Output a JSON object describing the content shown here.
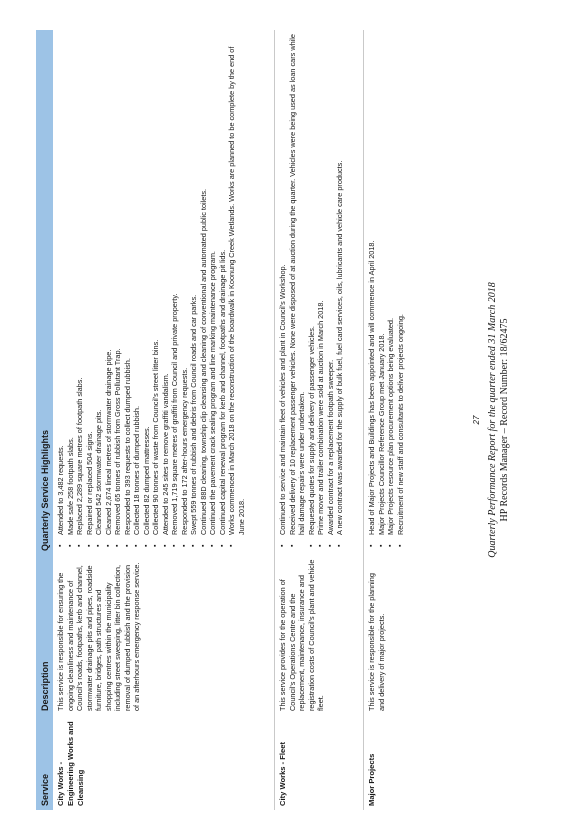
{
  "table": {
    "headers": [
      "Service",
      "Description",
      "Quarterly Service Highlights"
    ],
    "rows": [
      {
        "service": "City Works - Engineering Works and Cleansing",
        "description": "This service is responsible for ensuring the ongoing cleanliness and maintenance of Council's roads, footpaths, kerb and channel, stormwater drainage pits and pipes, roadside furniture, bridges, path structures and shopping centres within the municipality including street sweeping, litter bin collection, removal of dumped rubbish and the provision of an afterhours emergency response service.",
        "highlights": [
          "Attended to 3,482 requests.",
          "Made safe 258 footpath slabs.",
          "Replaced 2,289 square metres of footpath slabs.",
          "Repaired or replaced 504 signs.",
          "Cleaned 542 stormwater drainage pits.",
          "Cleaned 2,674 lineal metres of stormwater drainage pipe.",
          "Removed 65 tonnes of rubbish from Gross Pollutant Trap.",
          "Responded to 393 requests to collect dumped rubbish.",
          "Collected 18 tonnes of dumped rubbish.",
          "Collected 82 dumped mattresses.",
          "Collected 90 tonnes of waste from Council's street litter bins.",
          "Attended to 245 sites to remove graffiti vandalism.",
          "Removed 1,719 square metres of graffiti from Council and private property.",
          "Responded to 172 after-hours emergency requests.",
          "Swept 559 tonnes of rubbish and debris from Council roads and car parks.",
          "Continued 88D cleaning, township clip cleansing and cleaning of conventional and automated public toilets.",
          "Continued the pavement crack sealing program and line marking maintenance program.",
          "Continued capital renewal program for kerb and channel, footpaths and drainage pit lids.",
          "Works commenced in March 2018 on the reconstruction of the boardwalk in Koonung Creek Wetlands. Works are planned to be complete by the end of June 2018."
        ]
      },
      {
        "service": "City Works - Fleet",
        "description": "This service provides for the operation of Council's Operations Centre and the replacement, maintenance, insurance and registration costs of Council's plant and vehicle fleet.",
        "highlights": [
          "Continued to service and maintain fleet of vehicles and plant in Council's Workshop.",
          "Received delivery of 10 replacement passenger vehicles. None were disposed of at auction during the quarter. Vehicles were being used as loan cars while hail damage repairs were under undertaken.",
          "Requested quotes for supply and delivery of passenger vehicles.",
          "Prime mover and trailer combination were sold at auction in March 2018.",
          "Awarded contract for a replacement footpath sweeper.",
          "A new contract was awarded for the supply of bulk fuel, fuel card services, oils, lubricants and vehicle care products."
        ]
      },
      {
        "service": "Major Projects",
        "description": "This service is responsible for the planning and delivery of major projects.",
        "highlights": [
          "Head of Major Projects and Buildings has been appointed and will commence in April 2018.",
          "Major Projects Councillor Reference Group met January 2018.",
          "Major Projects resource plan procurement options being evaluated.",
          "Recruitment of new staff and consultants to deliver projects ongoing."
        ]
      }
    ]
  },
  "footer": {
    "page_number": "27",
    "report_title": "Quarterly Performance Report for the quarter ended 31 March 2018",
    "records": "HP Records Manager – Record Number: 18/62475"
  }
}
